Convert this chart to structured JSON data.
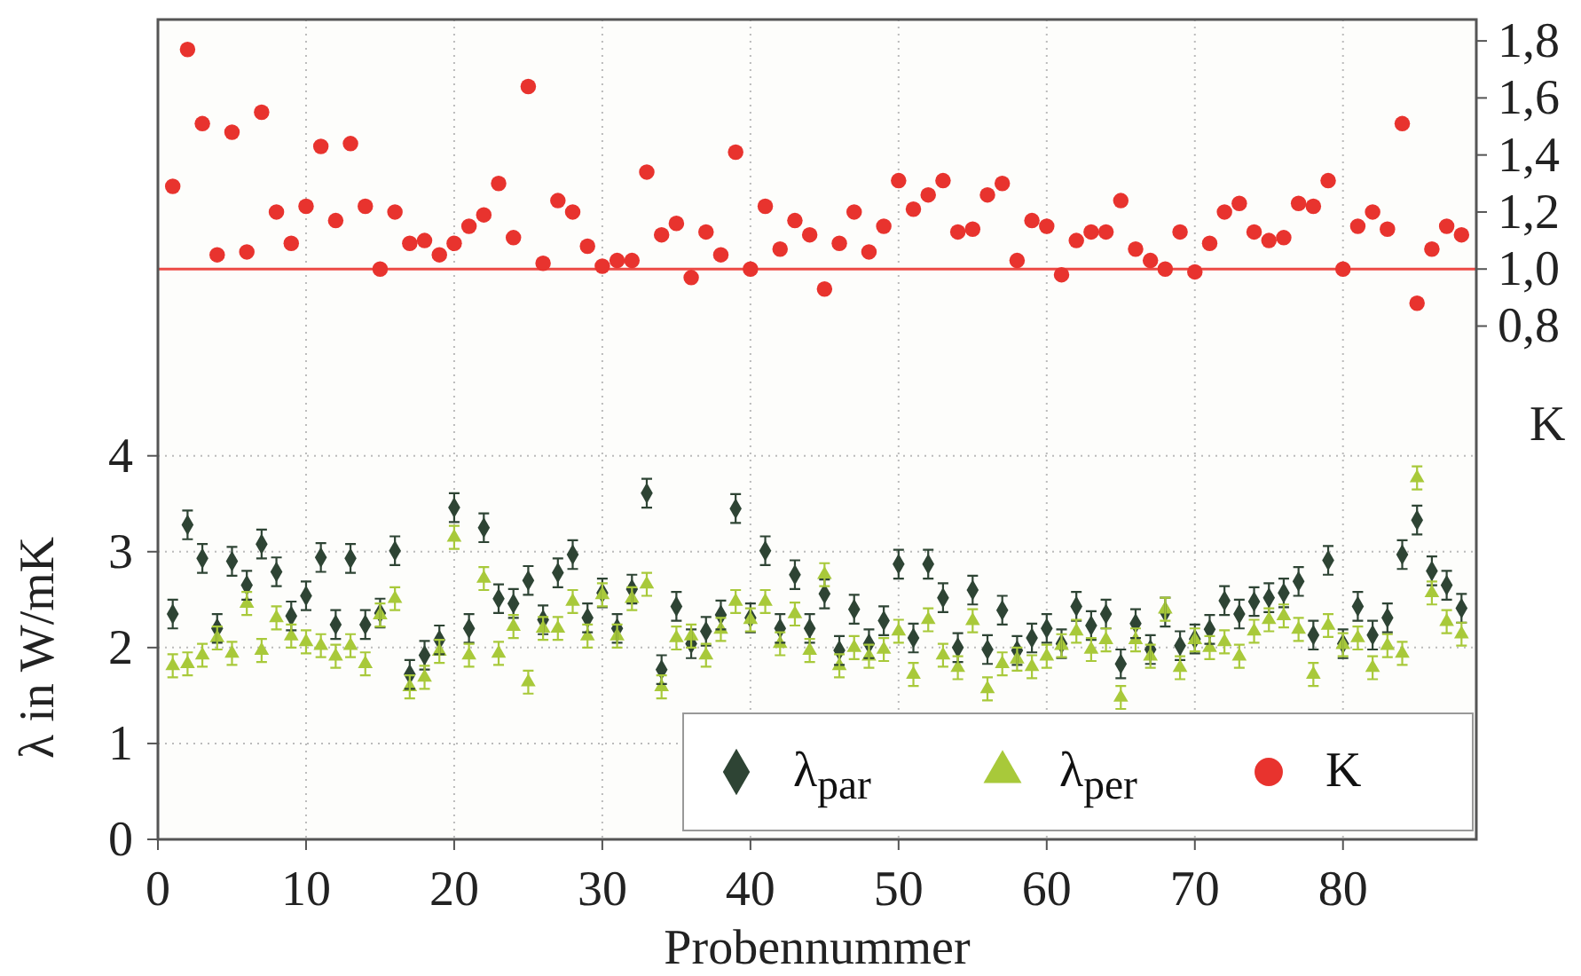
{
  "chart_data": {
    "type": "scatter",
    "xlabel": "Probennummer",
    "ylabel": "λ in W/mK",
    "y2label": "K",
    "x": [
      1,
      2,
      3,
      4,
      5,
      6,
      7,
      8,
      9,
      10,
      11,
      12,
      13,
      14,
      15,
      16,
      17,
      18,
      19,
      20,
      21,
      22,
      23,
      24,
      25,
      26,
      27,
      28,
      29,
      30,
      31,
      32,
      33,
      34,
      35,
      36,
      37,
      38,
      39,
      40,
      41,
      42,
      43,
      44,
      45,
      46,
      47,
      48,
      49,
      50,
      51,
      52,
      53,
      54,
      55,
      56,
      57,
      58,
      59,
      60,
      61,
      62,
      63,
      64,
      65,
      66,
      67,
      68,
      69,
      70,
      71,
      72,
      73,
      74,
      75,
      76,
      77,
      78,
      79,
      80,
      81,
      82,
      83,
      84,
      85,
      86,
      87,
      88
    ],
    "xlim": [
      0,
      89
    ],
    "xticks": [
      0,
      10,
      20,
      30,
      40,
      50,
      60,
      70,
      80
    ],
    "ylim": [
      0,
      8.55
    ],
    "yticks": [
      0,
      1,
      2,
      3,
      4
    ],
    "y2lim": [
      -1,
      1.875
    ],
    "y2ticks": [
      {
        "value": 0.8,
        "label": "0,8"
      },
      {
        "value": 1,
        "label": "1,0"
      },
      {
        "value": 1.2,
        "label": "1,2"
      },
      {
        "value": 1.4,
        "label": "1,4"
      },
      {
        "value": 1.6,
        "label": "1,6"
      },
      {
        "value": 1.8,
        "label": "1,8"
      }
    ],
    "grid": true,
    "legend": "bottom right",
    "ref_lines": [
      {
        "axis": "y2",
        "value": 1,
        "color": "#ec4a45"
      }
    ],
    "series": [
      {
        "name": "λ$_{par}$",
        "color": "#2e4434",
        "marker": "diamond",
        "values": [
          2.35,
          3.28,
          2.93,
          2.2,
          2.9,
          2.65,
          3.08,
          2.79,
          2.33,
          2.54,
          2.94,
          2.24,
          2.93,
          2.24,
          2.36,
          3.01,
          1.72,
          1.92,
          2.08,
          3.46,
          2.2,
          3.25,
          2.51,
          2.46,
          2.7,
          2.29,
          2.78,
          2.97,
          2.31,
          2.57,
          2.2,
          2.61,
          3.61,
          1.77,
          2.43,
          2.04,
          2.17,
          2.34,
          3.45,
          2.31,
          3.01,
          2.2,
          2.76,
          2.2,
          2.56,
          1.97,
          2.4,
          2.04,
          2.28,
          2.87,
          2.1,
          2.87,
          2.52,
          2.0,
          2.6,
          1.98,
          2.39,
          1.97,
          2.1,
          2.2,
          2.04,
          2.43,
          2.23,
          2.35,
          1.83,
          2.25,
          1.98,
          2.37,
          2.02,
          2.09,
          2.19,
          2.49,
          2.35,
          2.48,
          2.52,
          2.57,
          2.69,
          2.13,
          2.91,
          2.04,
          2.43,
          2.13,
          2.31,
          2.97,
          3.33,
          2.8,
          2.65,
          2.41
        ],
        "errors": [
          0.15,
          0.15,
          0.15,
          0.15,
          0.15,
          0.15,
          0.15,
          0.15,
          0.15,
          0.15,
          0.15,
          0.15,
          0.15,
          0.15,
          0.15,
          0.15,
          0.15,
          0.15,
          0.15,
          0.15,
          0.15,
          0.15,
          0.15,
          0.15,
          0.15,
          0.15,
          0.15,
          0.15,
          0.15,
          0.15,
          0.15,
          0.15,
          0.15,
          0.15,
          0.15,
          0.15,
          0.15,
          0.15,
          0.15,
          0.15,
          0.15,
          0.15,
          0.15,
          0.15,
          0.15,
          0.15,
          0.15,
          0.15,
          0.15,
          0.15,
          0.15,
          0.15,
          0.15,
          0.15,
          0.15,
          0.15,
          0.15,
          0.15,
          0.15,
          0.15,
          0.15,
          0.15,
          0.15,
          0.15,
          0.15,
          0.15,
          0.15,
          0.15,
          0.15,
          0.15,
          0.15,
          0.15,
          0.15,
          0.15,
          0.15,
          0.15,
          0.15,
          0.15,
          0.15,
          0.15,
          0.15,
          0.15,
          0.15,
          0.15,
          0.15,
          0.15,
          0.15,
          0.15
        ]
      },
      {
        "name": "λ$_{per}$",
        "color": "#a8c93a",
        "marker": "triangle",
        "values": [
          1.81,
          1.83,
          1.92,
          2.1,
          1.94,
          2.46,
          1.97,
          2.31,
          2.12,
          2.06,
          2.02,
          1.91,
          2.02,
          1.83,
          2.34,
          2.51,
          1.59,
          1.69,
          1.96,
          3.15,
          1.92,
          2.72,
          1.94,
          2.22,
          1.64,
          2.2,
          2.2,
          2.48,
          2.12,
          2.55,
          2.12,
          2.51,
          2.66,
          1.59,
          2.1,
          2.12,
          1.92,
          2.19,
          2.48,
          2.29,
          2.48,
          2.04,
          2.35,
          1.97,
          2.76,
          1.81,
          2.0,
          1.91,
          1.98,
          2.17,
          1.72,
          2.29,
          1.92,
          1.79,
          2.28,
          1.57,
          1.83,
          1.88,
          1.8,
          1.91,
          2.02,
          2.17,
          1.98,
          2.08,
          1.48,
          2.08,
          1.91,
          2.4,
          1.79,
          2.08,
          2.0,
          2.06,
          1.91,
          2.17,
          2.29,
          2.33,
          2.19,
          1.72,
          2.23,
          2.03,
          2.1,
          1.79,
          2.02,
          1.94,
          3.77,
          2.57,
          2.27,
          2.14
        ],
        "errors": [
          0.12,
          0.12,
          0.12,
          0.12,
          0.12,
          0.12,
          0.12,
          0.12,
          0.12,
          0.12,
          0.12,
          0.12,
          0.12,
          0.12,
          0.12,
          0.12,
          0.12,
          0.12,
          0.12,
          0.12,
          0.12,
          0.12,
          0.12,
          0.12,
          0.12,
          0.12,
          0.12,
          0.12,
          0.12,
          0.12,
          0.12,
          0.12,
          0.12,
          0.12,
          0.12,
          0.12,
          0.12,
          0.12,
          0.12,
          0.12,
          0.12,
          0.12,
          0.12,
          0.12,
          0.12,
          0.12,
          0.12,
          0.12,
          0.12,
          0.12,
          0.12,
          0.12,
          0.12,
          0.12,
          0.12,
          0.12,
          0.12,
          0.12,
          0.12,
          0.12,
          0.12,
          0.12,
          0.12,
          0.12,
          0.12,
          0.12,
          0.12,
          0.12,
          0.12,
          0.12,
          0.12,
          0.12,
          0.12,
          0.12,
          0.12,
          0.12,
          0.12,
          0.12,
          0.12,
          0.12,
          0.12,
          0.12,
          0.12,
          0.12,
          0.12,
          0.12,
          0.12,
          0.12
        ]
      },
      {
        "name": "K",
        "color": "#e8332e",
        "marker": "circle",
        "axis": "y2",
        "values": [
          1.29,
          1.77,
          1.51,
          1.05,
          1.48,
          1.06,
          1.55,
          1.2,
          1.09,
          1.22,
          1.43,
          1.17,
          1.44,
          1.22,
          1.0,
          1.2,
          1.09,
          1.1,
          1.05,
          1.09,
          1.15,
          1.19,
          1.3,
          1.11,
          1.64,
          1.02,
          1.24,
          1.2,
          1.08,
          1.01,
          1.03,
          1.03,
          1.34,
          1.12,
          1.16,
          0.97,
          1.13,
          1.05,
          1.41,
          1.0,
          1.22,
          1.07,
          1.17,
          1.12,
          0.93,
          1.09,
          1.2,
          1.06,
          1.15,
          1.31,
          1.21,
          1.26,
          1.31,
          1.13,
          1.14,
          1.26,
          1.3,
          1.03,
          1.17,
          1.15,
          0.98,
          1.1,
          1.13,
          1.13,
          1.24,
          1.07,
          1.03,
          1.0,
          1.13,
          0.99,
          1.09,
          1.2,
          1.23,
          1.13,
          1.1,
          1.11,
          1.23,
          1.22,
          1.31,
          1.0,
          1.15,
          1.2,
          1.14,
          1.51,
          0.88,
          1.07,
          1.15,
          1.12
        ]
      }
    ]
  }
}
